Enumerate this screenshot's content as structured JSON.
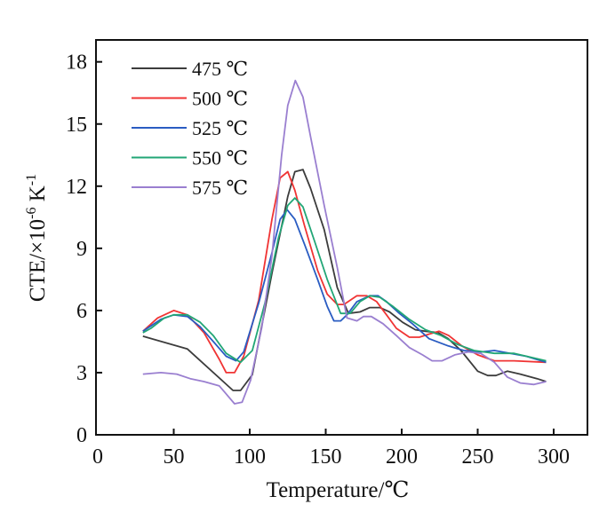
{
  "chart_data": {
    "type": "line",
    "title": "",
    "xlabel": "Temperature/℃",
    "ylabel": {
      "main": "CTE/×10",
      "sup1": "-6",
      "unit": " K",
      "sup2": "-1"
    },
    "xlim": [
      0,
      322
    ],
    "ylim": [
      0,
      19
    ],
    "xticks": [
      0,
      50,
      100,
      150,
      200,
      250,
      300
    ],
    "yticks": [
      0,
      3,
      6,
      9,
      12,
      15,
      18
    ],
    "grid": false,
    "legend_position": "top-left",
    "series": [
      {
        "name": "475 ℃",
        "color": "#3c3c3c",
        "x": [
          29.7,
          59,
          89,
          94,
          101.7,
          114.6,
          125,
          129.7,
          135,
          140,
          149,
          157.6,
          165,
          172.6,
          179,
          185.6,
          192,
          200.6,
          209,
          215.7,
          224,
          230.6,
          239,
          250,
          256.6,
          262,
          269.5,
          278,
          289,
          295
        ],
        "y": [
          4.76,
          4.14,
          2.14,
          2.14,
          2.9,
          7.8,
          11.5,
          12.7,
          12.8,
          11.9,
          9.9,
          7.1,
          5.86,
          5.93,
          6.14,
          6.14,
          5.93,
          5.43,
          5.07,
          5.0,
          4.93,
          4.64,
          4.07,
          3.07,
          2.86,
          2.86,
          3.07,
          2.93,
          2.71,
          2.57
        ]
      },
      {
        "name": "500 ℃",
        "color": "#f03434",
        "x": [
          29.7,
          39.4,
          50,
          59,
          69.9,
          80,
          84.5,
          90,
          96,
          105.9,
          114.6,
          120,
          125,
          129.7,
          136,
          144.7,
          151,
          157.6,
          162,
          170.5,
          177,
          183.5,
          190,
          196.5,
          205,
          211.6,
          218,
          224.6,
          231,
          239.6,
          250,
          261,
          274,
          295
        ],
        "y": [
          5.0,
          5.64,
          6.0,
          5.79,
          4.93,
          3.64,
          3.0,
          3.0,
          3.79,
          6.5,
          10.4,
          12.4,
          12.7,
          11.8,
          10.1,
          7.93,
          6.79,
          6.29,
          6.29,
          6.71,
          6.71,
          6.43,
          5.79,
          5.14,
          4.71,
          4.71,
          4.86,
          5.0,
          4.79,
          4.29,
          3.86,
          3.57,
          3.57,
          3.5
        ]
      },
      {
        "name": "525 ℃",
        "color": "#2a5cc2",
        "x": [
          29.7,
          41.5,
          50,
          59,
          67.4,
          76,
          84.5,
          91,
          96,
          105.9,
          114.6,
          120,
          124.7,
          129.7,
          136,
          144.7,
          151,
          155.4,
          159.8,
          164,
          170.5,
          179,
          184.5,
          190,
          198.5,
          207,
          218,
          230.6,
          241,
          252,
          261,
          271.6,
          282,
          295
        ],
        "y": [
          5.0,
          5.57,
          5.79,
          5.71,
          5.21,
          4.5,
          3.79,
          3.57,
          4.0,
          6.36,
          8.79,
          10.4,
          10.86,
          10.4,
          9.2,
          7.5,
          6.2,
          5.5,
          5.5,
          5.79,
          6.43,
          6.71,
          6.71,
          6.43,
          5.86,
          5.36,
          4.64,
          4.29,
          4.07,
          4.0,
          4.07,
          3.93,
          3.79,
          3.5
        ]
      },
      {
        "name": "550 ℃",
        "color": "#22a676",
        "x": [
          29.7,
          35,
          43.8,
          50,
          59,
          67.4,
          76,
          84.5,
          94,
          101.7,
          110,
          118.9,
          125,
          129.7,
          135,
          142.6,
          151,
          159.8,
          166,
          172.6,
          179,
          185.6,
          194,
          205,
          215.7,
          226,
          236.8,
          247.6,
          261,
          274,
          295
        ],
        "y": [
          4.93,
          5.14,
          5.64,
          5.79,
          5.79,
          5.43,
          4.79,
          3.93,
          3.5,
          4.07,
          6.36,
          9.5,
          11.07,
          11.43,
          11.0,
          9.36,
          7.5,
          5.86,
          5.86,
          6.43,
          6.71,
          6.64,
          6.21,
          5.57,
          5.07,
          4.79,
          4.36,
          4.07,
          3.93,
          3.93,
          3.57
        ]
      },
      {
        "name": "575 ℃",
        "color": "#9a7fd0",
        "x": [
          29.7,
          41.5,
          52,
          60.8,
          69.9,
          80,
          90,
          95,
          100.6,
          108,
          114.6,
          121,
          125,
          130,
          135,
          140,
          149,
          157.6,
          164,
          170.5,
          174.8,
          180,
          187.7,
          196.5,
          205,
          213.7,
          220,
          226.6,
          235,
          243.8,
          252,
          261,
          269.5,
          278,
          287,
          295
        ],
        "y": [
          2.93,
          3.0,
          2.93,
          2.71,
          2.57,
          2.36,
          1.5,
          1.57,
          2.64,
          5.21,
          8.64,
          13.5,
          15.9,
          17.1,
          16.3,
          14.4,
          11.07,
          8.07,
          5.64,
          5.5,
          5.71,
          5.71,
          5.36,
          4.79,
          4.21,
          3.86,
          3.57,
          3.57,
          3.86,
          4.0,
          3.93,
          3.5,
          2.79,
          2.5,
          2.43,
          2.57
        ]
      }
    ]
  }
}
